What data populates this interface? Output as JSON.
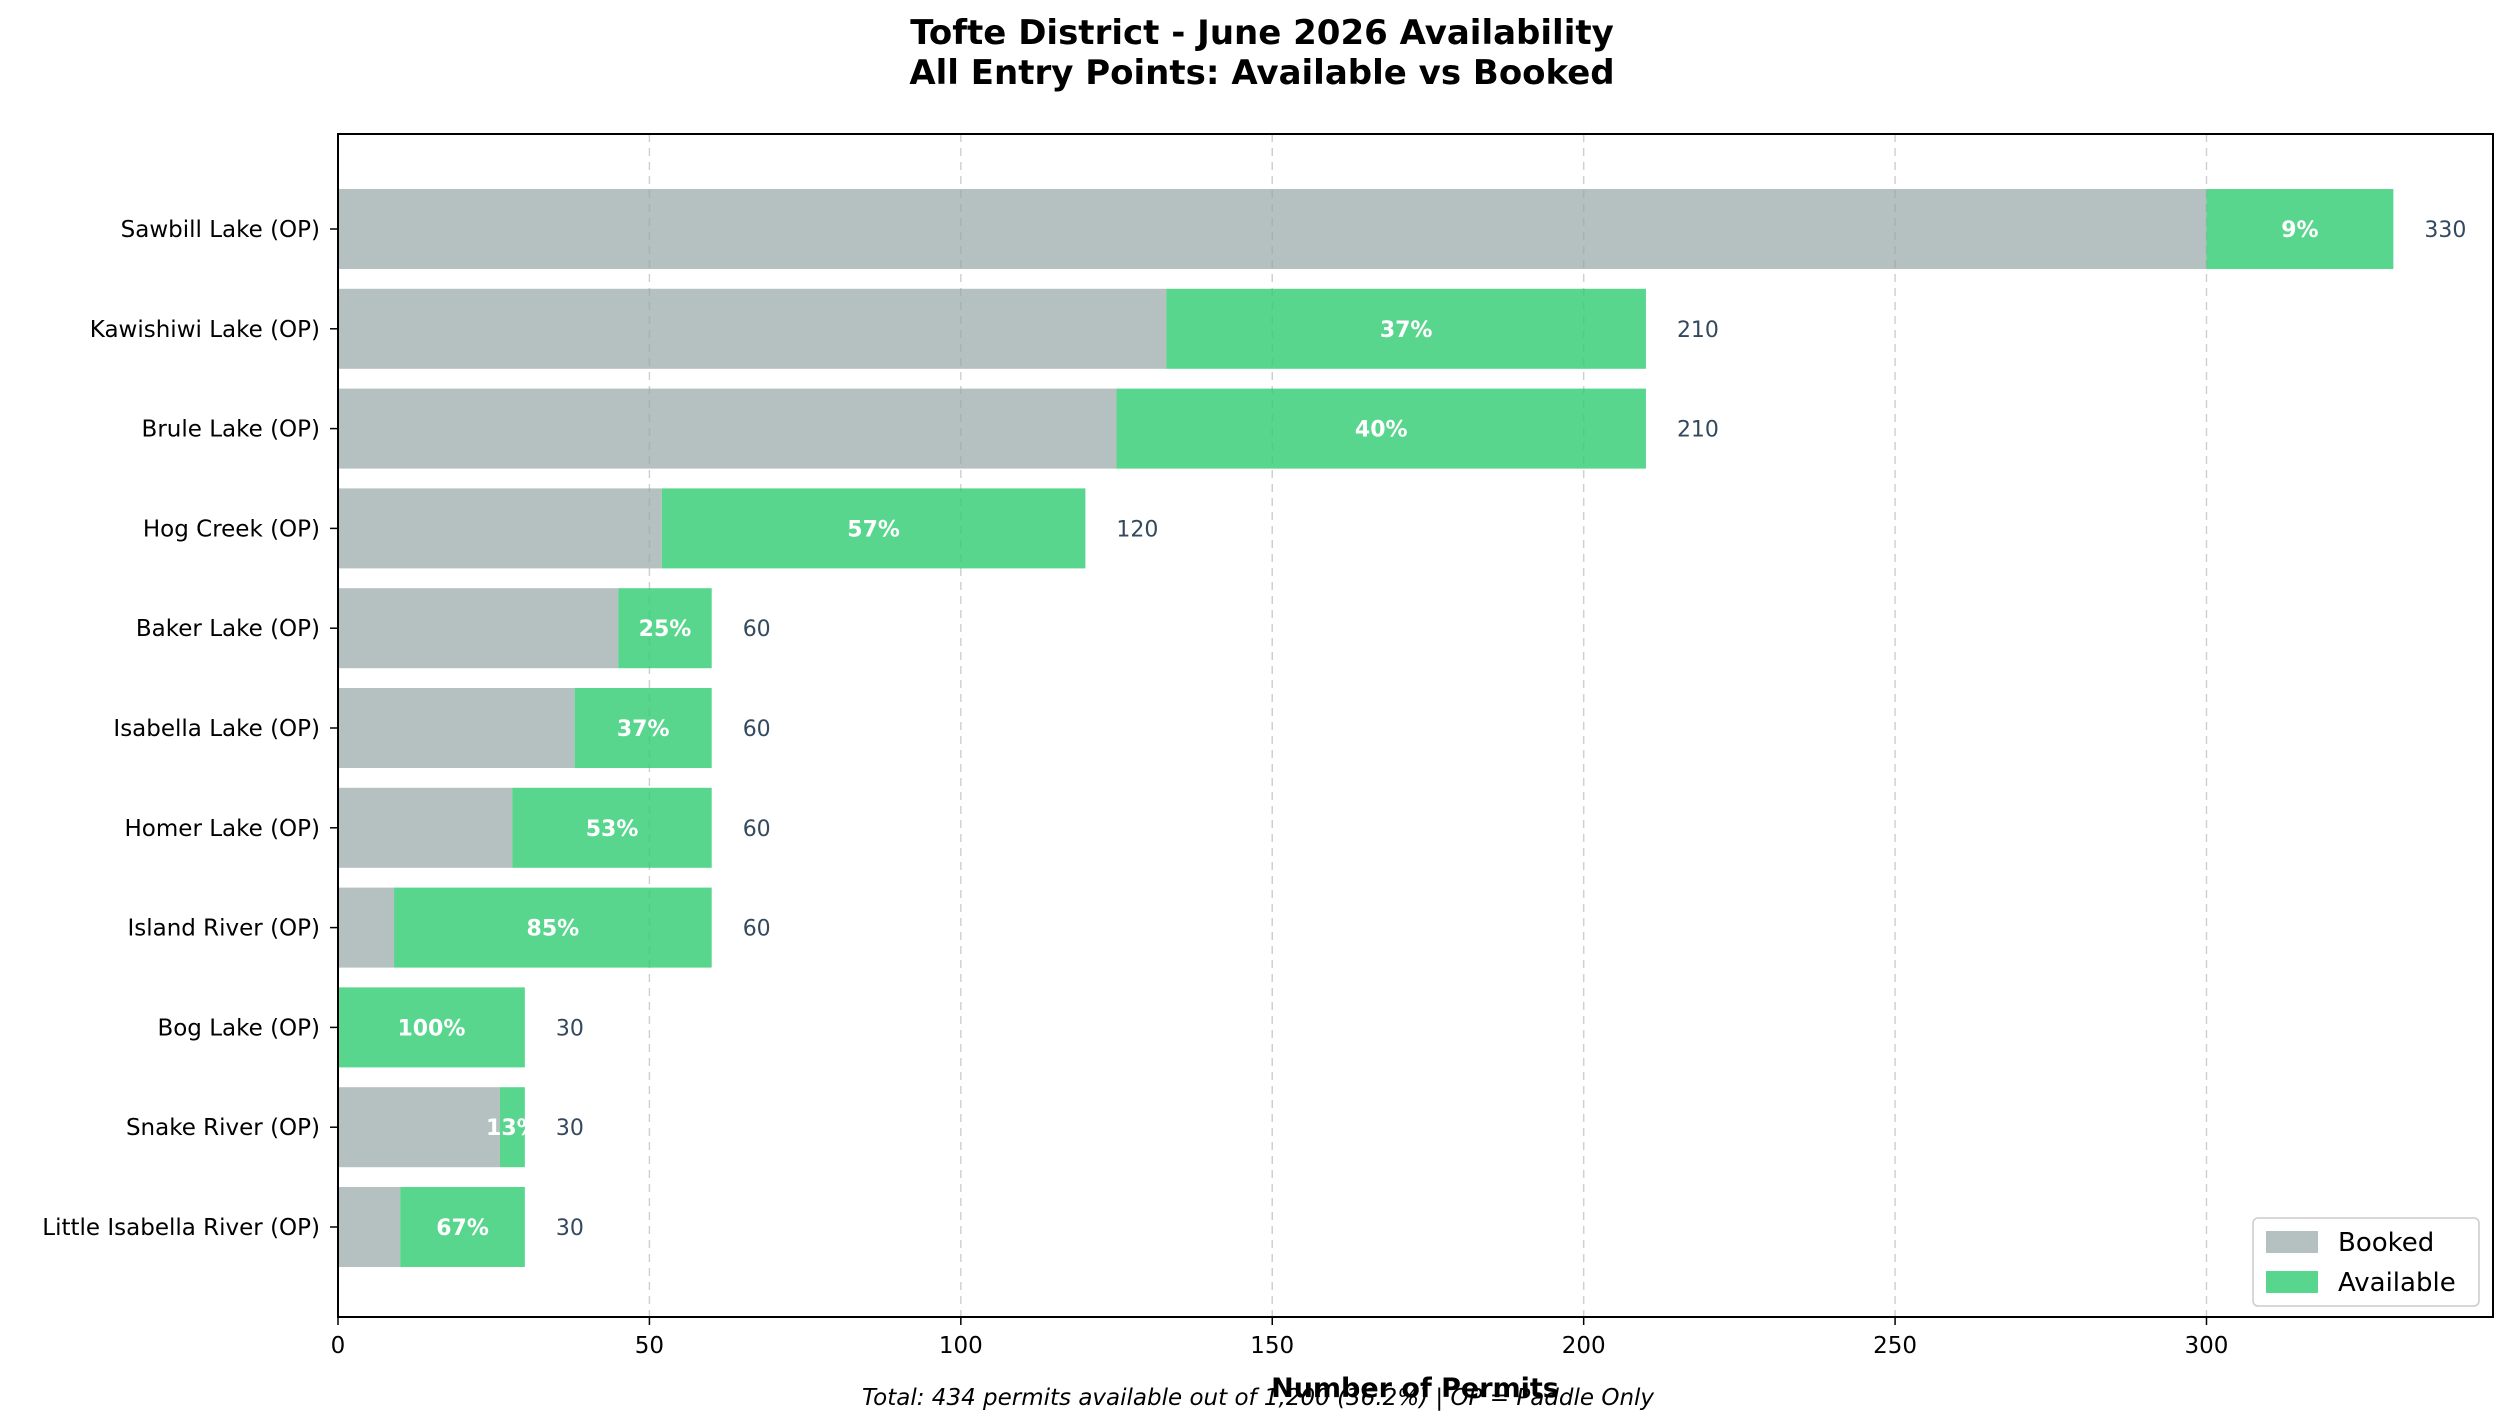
{
  "chart_data": {
    "type": "bar",
    "orientation": "horizontal",
    "stacked": true,
    "title_line1": "Tofte District - June 2026 Availability",
    "title_line2": "All Entry Points: Available vs Booked",
    "xlabel": "Number of Permits",
    "ylabel": "",
    "xlim": [
      0,
      346
    ],
    "xticks": [
      "0",
      "50",
      "100",
      "150",
      "200",
      "250",
      "300"
    ],
    "grid": "x-dashed",
    "legend_position": "bottom-right",
    "categories": [
      "Sawbill Lake (OP)",
      "Kawishiwi Lake (OP)",
      "Brule Lake (OP)",
      "Hog Creek (OP)",
      "Baker Lake (OP)",
      "Isabella Lake (OP)",
      "Homer Lake (OP)",
      "Island River (OP)",
      "Bog Lake (OP)",
      "Snake River (OP)",
      "Little Isabella River (OP)"
    ],
    "series": [
      {
        "name": "Booked",
        "color": "#95a5a6",
        "values": [
          300,
          133,
          125,
          52,
          45,
          38,
          28,
          9,
          0,
          26,
          10
        ]
      },
      {
        "name": "Available",
        "color": "#2ecc71",
        "values": [
          30,
          77,
          85,
          68,
          15,
          22,
          32,
          51,
          30,
          4,
          20
        ]
      }
    ],
    "percent_labels": [
      "9%",
      "37%",
      "40%",
      "57%",
      "25%",
      "37%",
      "53%",
      "85%",
      "100%",
      "13%",
      "67%"
    ],
    "total_labels": [
      "330",
      "210",
      "210",
      "120",
      "60",
      "60",
      "60",
      "60",
      "30",
      "30",
      "30"
    ],
    "footnote": "Total: 434 permits available out of 1,200 (36.2%) | OP = Paddle Only"
  }
}
